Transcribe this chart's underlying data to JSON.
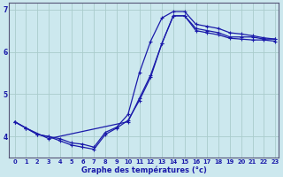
{
  "xlabel": "Graphe des températures (°c)",
  "background_color": "#cce8ee",
  "grid_color": "#aacccc",
  "line_color": "#1a1aaa",
  "xlim": [
    -0.5,
    23.3
  ],
  "ylim": [
    3.5,
    7.15
  ],
  "yticks": [
    4,
    5,
    6,
    7
  ],
  "xticks": [
    0,
    1,
    2,
    3,
    4,
    5,
    6,
    7,
    8,
    9,
    10,
    11,
    12,
    13,
    14,
    15,
    16,
    17,
    18,
    19,
    20,
    21,
    22,
    23
  ],
  "series1_x": [
    0,
    1,
    2,
    3,
    4,
    5,
    6,
    7,
    8,
    9,
    10,
    11,
    12,
    13,
    14,
    15,
    16,
    17,
    18,
    19,
    20,
    21,
    22,
    23
  ],
  "series1_y": [
    4.35,
    4.2,
    4.05,
    4.0,
    3.9,
    3.8,
    3.75,
    3.7,
    4.05,
    4.2,
    4.38,
    4.85,
    5.4,
    6.2,
    6.85,
    6.85,
    6.5,
    6.45,
    6.4,
    6.32,
    6.3,
    6.28,
    6.28,
    6.25
  ],
  "series2_x": [
    0,
    1,
    2,
    3,
    4,
    5,
    6,
    7,
    8,
    9,
    10,
    11,
    12,
    13,
    14,
    15,
    16,
    17,
    18,
    19,
    20,
    21,
    22,
    23
  ],
  "series2_y": [
    4.35,
    4.2,
    4.05,
    4.0,
    3.95,
    3.85,
    3.82,
    3.75,
    4.1,
    4.22,
    4.52,
    5.5,
    6.25,
    6.8,
    6.95,
    6.95,
    6.65,
    6.6,
    6.55,
    6.45,
    6.42,
    6.38,
    6.33,
    6.3
  ],
  "series3_x": [
    0,
    1,
    3,
    10,
    11,
    12,
    13,
    14,
    15,
    16,
    17,
    18,
    19,
    20,
    21,
    22,
    23
  ],
  "series3_y": [
    4.35,
    4.2,
    3.95,
    4.35,
    4.9,
    5.45,
    6.2,
    6.85,
    6.85,
    6.55,
    6.5,
    6.45,
    6.35,
    6.35,
    6.35,
    6.3,
    6.3
  ]
}
